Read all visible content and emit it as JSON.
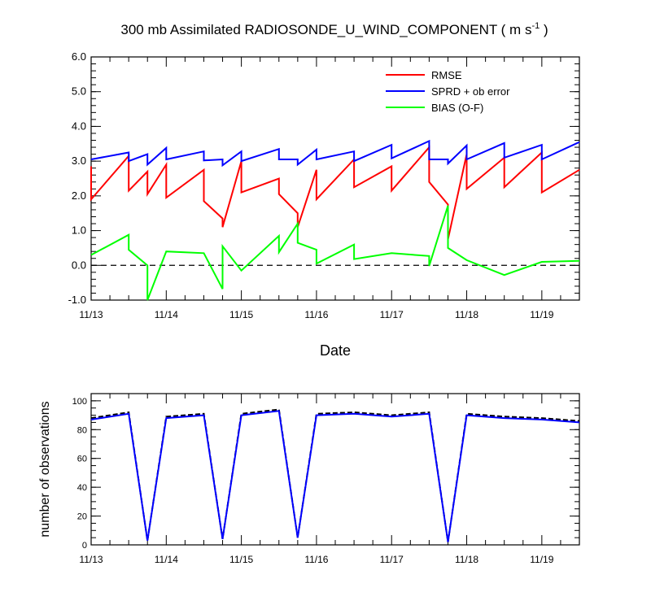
{
  "title_main": "300 mb Assimilated RADIOSONDE_U_WIND_COMPONENT ( m s",
  "title_sup": "-1",
  "title_end": " )",
  "chart_data": [
    {
      "type": "line",
      "xlabel": "Date",
      "ylabel": "",
      "xlim": [
        0,
        6.5
      ],
      "ylim": [
        -1.0,
        6.0
      ],
      "x_ticks": [
        0,
        1,
        2,
        3,
        4,
        5,
        6
      ],
      "x_tick_labels": [
        "11/13",
        "11/14",
        "11/15",
        "11/16",
        "11/17",
        "11/18",
        "11/19"
      ],
      "y_ticks": [
        -1,
        0,
        1,
        2,
        3,
        4,
        5,
        6
      ],
      "y_tick_labels": [
        "-1.0",
        "0.0",
        "1.0",
        "2.0",
        "3.0",
        "4.0",
        "5.0",
        "6.0"
      ],
      "reference_line": 0,
      "legend": [
        "RMSE",
        "SPRD + ob error",
        "BIAS (O-F)"
      ],
      "series": [
        {
          "name": "RMSE",
          "color": "#ff0000",
          "points": [
            [
              0,
              2.85
            ],
            [
              0,
              1.9
            ],
            [
              0.5,
              3.15
            ],
            [
              0.5,
              2.15
            ],
            [
              0.75,
              2.7
            ],
            [
              0.75,
              2.05
            ],
            [
              1,
              2.9
            ],
            [
              1,
              1.95
            ],
            [
              1.5,
              2.75
            ],
            [
              1.5,
              1.85
            ],
            [
              1.75,
              1.35
            ],
            [
              1.75,
              1.1
            ],
            [
              2,
              3.0
            ],
            [
              2,
              2.1
            ],
            [
              2.5,
              2.5
            ],
            [
              2.5,
              2.05
            ],
            [
              2.75,
              1.5
            ],
            [
              2.75,
              1.1
            ],
            [
              3,
              2.75
            ],
            [
              3,
              1.9
            ],
            [
              3.5,
              3.05
            ],
            [
              3.5,
              2.25
            ],
            [
              4,
              2.85
            ],
            [
              4,
              2.15
            ],
            [
              4.5,
              3.4
            ],
            [
              4.5,
              2.4
            ],
            [
              4.75,
              1.75
            ],
            [
              4.75,
              0.75
            ],
            [
              5,
              3.2
            ],
            [
              5,
              2.2
            ],
            [
              5.5,
              3.1
            ],
            [
              5.5,
              2.25
            ],
            [
              6,
              3.25
            ],
            [
              6,
              2.1
            ],
            [
              6.5,
              2.75
            ]
          ]
        },
        {
          "name": "SPRD + ob error",
          "color": "#0000ff",
          "points": [
            [
              0,
              3.05
            ],
            [
              0.5,
              3.25
            ],
            [
              0.5,
              3.0
            ],
            [
              0.75,
              3.2
            ],
            [
              0.75,
              2.9
            ],
            [
              1,
              3.38
            ],
            [
              1,
              3.05
            ],
            [
              1.5,
              3.28
            ],
            [
              1.5,
              3.02
            ],
            [
              1.75,
              3.05
            ],
            [
              1.75,
              2.88
            ],
            [
              2,
              3.28
            ],
            [
              2,
              3.0
            ],
            [
              2.5,
              3.35
            ],
            [
              2.5,
              3.05
            ],
            [
              2.75,
              3.05
            ],
            [
              2.75,
              2.9
            ],
            [
              3,
              3.33
            ],
            [
              3,
              3.05
            ],
            [
              3.5,
              3.28
            ],
            [
              3.5,
              3.0
            ],
            [
              4,
              3.47
            ],
            [
              4,
              3.08
            ],
            [
              4.5,
              3.58
            ],
            [
              4.5,
              3.05
            ],
            [
              4.75,
              3.05
            ],
            [
              4.75,
              2.93
            ],
            [
              5,
              3.45
            ],
            [
              5,
              3.05
            ],
            [
              5.5,
              3.52
            ],
            [
              5.5,
              3.1
            ],
            [
              6,
              3.47
            ],
            [
              6,
              3.05
            ],
            [
              6.5,
              3.55
            ]
          ]
        },
        {
          "name": "BIAS (O-F)",
          "color": "#00ff00",
          "points": [
            [
              0,
              0.3
            ],
            [
              0.5,
              0.88
            ],
            [
              0.5,
              0.45
            ],
            [
              0.75,
              0.0
            ],
            [
              0.75,
              -1.0
            ],
            [
              1,
              0.4
            ],
            [
              1.5,
              0.35
            ],
            [
              1.75,
              -0.68
            ],
            [
              1.75,
              0.55
            ],
            [
              2,
              -0.15
            ],
            [
              2.5,
              0.85
            ],
            [
              2.5,
              0.38
            ],
            [
              2.75,
              1.2
            ],
            [
              2.75,
              0.65
            ],
            [
              3,
              0.45
            ],
            [
              3,
              0.05
            ],
            [
              3.5,
              0.6
            ],
            [
              3.5,
              0.18
            ],
            [
              4,
              0.35
            ],
            [
              4.5,
              0.27
            ],
            [
              4.5,
              -0.02
            ],
            [
              4.75,
              1.72
            ],
            [
              4.75,
              0.5
            ],
            [
              5,
              0.15
            ],
            [
              5.5,
              -0.28
            ],
            [
              6,
              0.1
            ],
            [
              6.5,
              0.13
            ]
          ]
        }
      ]
    },
    {
      "type": "line",
      "xlabel": "",
      "ylabel": "number of observations",
      "xlim": [
        0,
        6.5
      ],
      "ylim": [
        0,
        105
      ],
      "x_ticks": [
        0,
        1,
        2,
        3,
        4,
        5,
        6
      ],
      "x_tick_labels": [
        "11/13",
        "11/14",
        "11/15",
        "11/16",
        "11/17",
        "11/18",
        "11/19"
      ],
      "y_ticks": [
        0,
        20,
        40,
        60,
        80,
        100
      ],
      "y_tick_labels": [
        "0",
        "20",
        "40",
        "60",
        "80",
        "100"
      ],
      "series": [
        {
          "name": "observations (dashed)",
          "color": "#000000",
          "dashed": true,
          "points": [
            [
              0,
              88
            ],
            [
              0.5,
              92
            ],
            [
              0.75,
              3
            ],
            [
              1,
              89
            ],
            [
              1.5,
              91
            ],
            [
              1.75,
              4
            ],
            [
              2,
              91
            ],
            [
              2.5,
              94
            ],
            [
              2.75,
              5
            ],
            [
              3,
              91
            ],
            [
              3.5,
              92
            ],
            [
              4,
              90
            ],
            [
              4.5,
              92
            ],
            [
              4.75,
              2
            ],
            [
              5,
              91
            ],
            [
              5.5,
              89
            ],
            [
              6,
              88
            ],
            [
              6.5,
              86
            ]
          ]
        },
        {
          "name": "observations",
          "color": "#0000ff",
          "dashed": false,
          "points": [
            [
              0,
              87
            ],
            [
              0.5,
              91
            ],
            [
              0.75,
              3
            ],
            [
              1,
              88
            ],
            [
              1.5,
              90
            ],
            [
              1.75,
              4
            ],
            [
              2,
              90
            ],
            [
              2.5,
              93
            ],
            [
              2.75,
              5
            ],
            [
              3,
              90
            ],
            [
              3.5,
              91
            ],
            [
              4,
              89
            ],
            [
              4.5,
              91
            ],
            [
              4.75,
              2
            ],
            [
              5,
              90
            ],
            [
              5.5,
              88
            ],
            [
              6,
              87
            ],
            [
              6.5,
              85
            ]
          ]
        }
      ]
    }
  ]
}
